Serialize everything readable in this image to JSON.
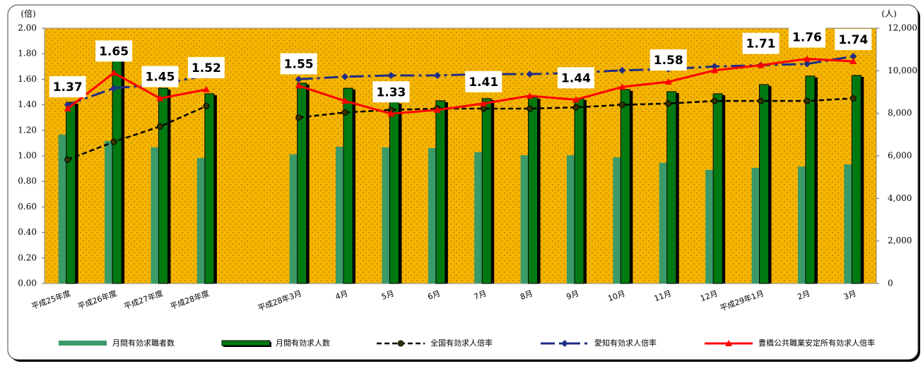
{
  "chart_data": {
    "type": "bar",
    "y_label": "(倍)",
    "y2_label": "(人)",
    "categories": [
      "平成25年度",
      "平成26年度",
      "平成27年度",
      "平成28年度",
      null,
      "平成28年3月",
      "4月",
      "5月",
      "6月",
      "7月",
      "8月",
      "9月",
      "10月",
      "11月",
      "12月",
      "平成29年1月",
      "2月",
      "3月"
    ],
    "ylim": [
      0,
      2
    ],
    "yticks": [
      {
        "value": 0,
        "label": "0.00"
      },
      {
        "value": 0.2,
        "label": "0.20"
      },
      {
        "value": 0.4,
        "label": "0.40"
      },
      {
        "value": 0.6,
        "label": "0.60"
      },
      {
        "value": 0.8,
        "label": "0.80"
      },
      {
        "value": 1,
        "label": "1.00"
      },
      {
        "value": 1.2,
        "label": "1.20"
      },
      {
        "value": 1.4,
        "label": "1.40"
      },
      {
        "value": 1.6,
        "label": "1.60"
      },
      {
        "value": 1.8,
        "label": "1.80"
      },
      {
        "value": 2,
        "label": "2.00"
      }
    ],
    "y2lim": [
      0,
      12000
    ],
    "y2ticks": [
      0,
      {
        "value": 2000,
        "label": "2,000"
      },
      {
        "value": 4000,
        "label": "4,000"
      },
      {
        "value": 6000,
        "label": "6,000"
      },
      {
        "value": 8000,
        "label": "8,000"
      },
      {
        "value": 10000,
        "label": "10,000"
      },
      {
        "value": 12000,
        "label": "12,000"
      }
    ],
    "grid": false,
    "legend": "bottom",
    "series": [
      {
        "name": "月間有効求職者数",
        "type": "bar",
        "axis": "y2",
        "color": "#3a9a68",
        "values": [
          7000,
          6700,
          6400,
          5900,
          null,
          6070,
          6430,
          6400,
          6360,
          6170,
          6030,
          6030,
          5930,
          5670,
          5340,
          5440,
          5500,
          5600
        ]
      },
      {
        "name": "月間有効求人数",
        "type": "bar",
        "axis": "y2",
        "color": "#007a10",
        "values": [
          8520,
          10500,
          9180,
          8920,
          null,
          9420,
          9180,
          8520,
          8590,
          8690,
          8750,
          8690,
          9120,
          9020,
          8920,
          9350,
          9750,
          9780
        ]
      },
      {
        "name": "全国有効求人倍率",
        "type": "line",
        "color": "#000000",
        "marker": "circle",
        "values": [
          0.97,
          1.11,
          1.23,
          1.39,
          null,
          1.3,
          1.34,
          1.36,
          1.37,
          1.37,
          1.37,
          1.38,
          1.4,
          1.41,
          1.43,
          1.43,
          1.43,
          1.45
        ]
      },
      {
        "name": "愛知有効求人倍率",
        "type": "line",
        "color": "#1f2d86",
        "marker": "diamond",
        "values": [
          1.4,
          1.53,
          1.56,
          1.63,
          null,
          1.6,
          1.62,
          1.63,
          1.63,
          1.64,
          1.64,
          1.65,
          1.67,
          1.68,
          1.7,
          1.71,
          1.72,
          1.78
        ]
      },
      {
        "name": "豊橋公共職業安定所有効求人倍率",
        "type": "line",
        "color": "#ff0000",
        "marker": "triangle",
        "values": [
          1.37,
          1.65,
          1.45,
          1.52,
          null,
          1.55,
          1.43,
          1.33,
          1.36,
          1.41,
          1.47,
          1.44,
          1.54,
          1.58,
          1.67,
          1.71,
          1.76,
          1.74
        ],
        "value_labels": [
          "1.37",
          "1.65",
          "1.45",
          "1.52",
          null,
          "1.55",
          null,
          "1.33",
          null,
          "1.41",
          null,
          "1.44",
          null,
          "1.58",
          null,
          "1.71",
          "1.76",
          "1.74"
        ]
      }
    ]
  }
}
